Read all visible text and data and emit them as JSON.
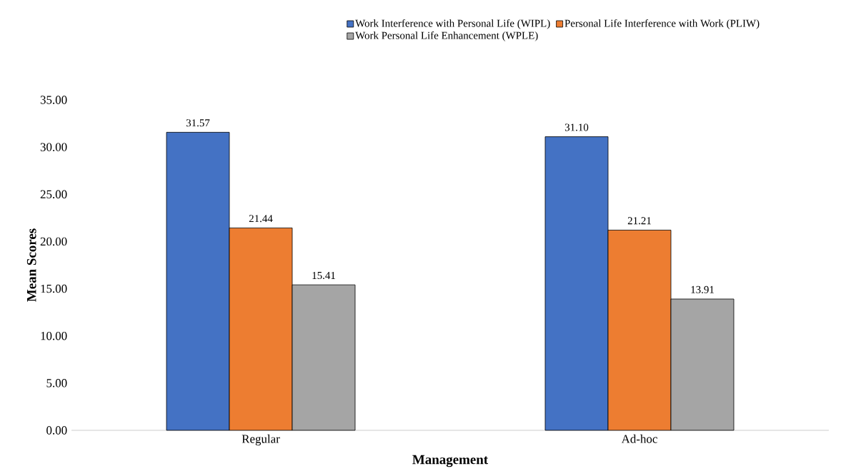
{
  "chart_data": {
    "type": "bar",
    "xlabel": "Management",
    "ylabel": "Mean Scores",
    "categories": [
      "Regular",
      "Ad-hoc"
    ],
    "series": [
      {
        "name": "Work Interference with Personal Life (WIPL)",
        "color": "#4472c4",
        "values": [
          31.57,
          31.1
        ],
        "value_labels": [
          "31.57",
          "31.10"
        ]
      },
      {
        "name": "Personal Life Interference with Work (PLIW)",
        "color": "#ed7d31",
        "values": [
          21.44,
          21.21
        ],
        "value_labels": [
          "21.44",
          "21.21"
        ]
      },
      {
        "name": "Work Personal Life Enhancement (WPLE)",
        "color": "#a5a5a5",
        "values": [
          15.41,
          13.91
        ],
        "value_labels": [
          "15.41",
          "13.91"
        ]
      }
    ],
    "ylim": [
      0,
      35
    ],
    "yticks": [
      {
        "value": 0,
        "label": "0.00"
      },
      {
        "value": 5,
        "label": "5.00"
      },
      {
        "value": 10,
        "label": "10.00"
      },
      {
        "value": 15,
        "label": "15.00"
      },
      {
        "value": 20,
        "label": "20.00"
      },
      {
        "value": 25,
        "label": "25.00"
      },
      {
        "value": 30,
        "label": "30.00"
      },
      {
        "value": 35,
        "label": "35.00"
      }
    ],
    "legend": "top",
    "grid": false
  }
}
